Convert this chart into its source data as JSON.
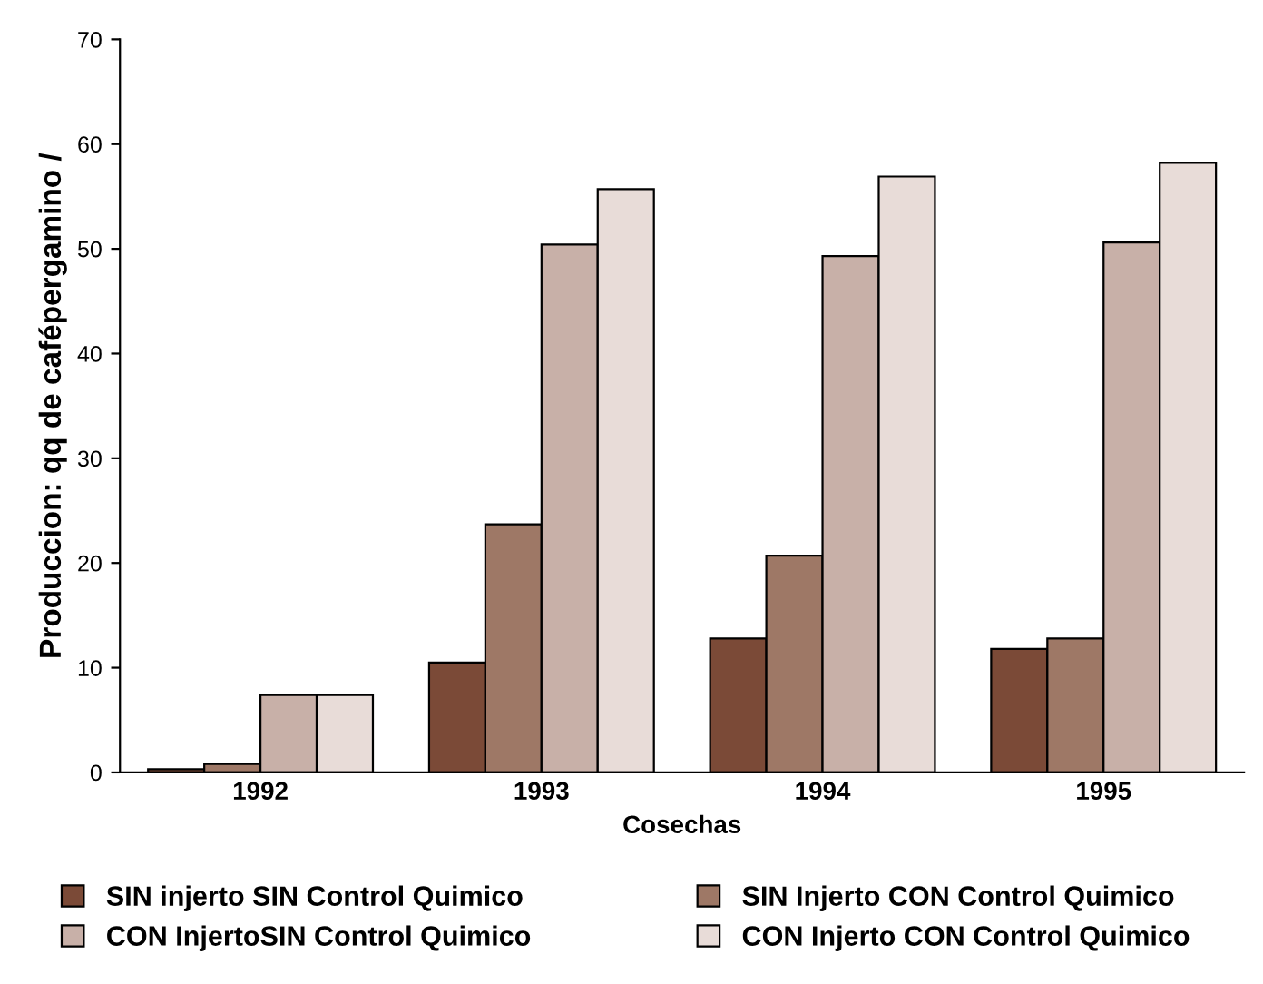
{
  "chart_data": {
    "type": "bar",
    "xlabel": "Cosechas",
    "ylabel": "Produccion: qq de cafépergamino /",
    "categories": [
      "1992",
      "1993",
      "1994",
      "1995"
    ],
    "series": [
      {
        "name": "SIN injerto SIN Control Quimico",
        "color": "#7b4a37",
        "values": [
          0.3,
          10.5,
          12.8,
          11.8
        ]
      },
      {
        "name": "SIN Injerto CON Control Quimico",
        "color": "#9e7866",
        "values": [
          0.8,
          23.7,
          20.7,
          12.8
        ]
      },
      {
        "name": "CON InjertoSIN Control Quimico",
        "color": "#c8b0a8",
        "values": [
          7.4,
          50.4,
          49.3,
          50.6
        ]
      },
      {
        "name": "CON Injerto CON Control Quimico",
        "color": "#e8dcd8",
        "values": [
          7.4,
          55.7,
          56.9,
          58.2
        ]
      }
    ],
    "ylim": [
      0,
      70
    ],
    "yticks": [
      0,
      10,
      20,
      30,
      40,
      50,
      60,
      70
    ],
    "grid": false,
    "legend": "bottom"
  }
}
